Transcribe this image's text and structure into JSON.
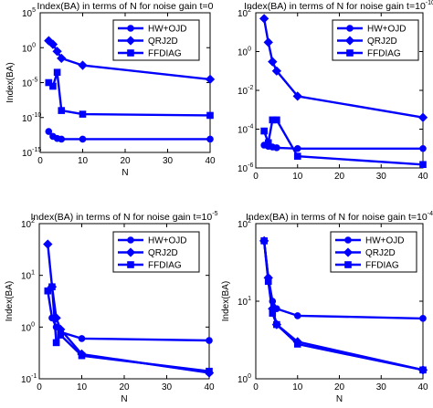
{
  "chart_data": [
    {
      "type": "line",
      "title": "Index(BA) in terms of N for noise gain t=0",
      "title_power": "",
      "xlabel": "N",
      "ylabel": "Index(BA)",
      "xlim": [
        0,
        40
      ],
      "ylim_log10": [
        -15,
        5
      ],
      "xticks": [
        "0",
        "10",
        "20",
        "30",
        "40"
      ],
      "yticks": [
        {
          "base": "10",
          "exp": "5"
        },
        {
          "base": "10",
          "exp": "0"
        },
        {
          "base": "10",
          "exp": "-5"
        },
        {
          "base": "10",
          "exp": "-10"
        },
        {
          "base": "10",
          "exp": "-15"
        }
      ],
      "legend_position": "top-right",
      "series": [
        {
          "name": "HW+OJD",
          "marker": "circle",
          "x": [
            2,
            3,
            4,
            5,
            10,
            40
          ],
          "y": [
            1e-12,
            2e-13,
            1e-13,
            8e-14,
            8e-14,
            8e-14
          ]
        },
        {
          "name": "QRJ2D",
          "marker": "diamond",
          "x": [
            2,
            3,
            4,
            5,
            10,
            40
          ],
          "y": [
            10,
            3,
            0.3,
            0.03,
            0.003,
            3e-05
          ]
        },
        {
          "name": "FFDIAG",
          "marker": "square",
          "x": [
            2,
            3,
            4,
            5,
            10,
            40
          ],
          "y": [
            1e-05,
            3e-06,
            0.0003,
            1e-09,
            3e-10,
            2e-10
          ]
        }
      ]
    },
    {
      "type": "line",
      "title": "Index(BA) in terms of N for noise gain t=10",
      "title_power": "-10",
      "xlabel": "",
      "ylabel": "",
      "xlim": [
        0,
        40
      ],
      "ylim_log10": [
        -6,
        2
      ],
      "xticks": [
        "0",
        "10",
        "20",
        "30",
        "40"
      ],
      "yticks": [
        {
          "base": "10",
          "exp": "2"
        },
        {
          "base": "10",
          "exp": "0"
        },
        {
          "base": "10",
          "exp": "-2"
        },
        {
          "base": "10",
          "exp": "-4"
        },
        {
          "base": "10",
          "exp": "-6"
        }
      ],
      "legend_position": "top-right",
      "series": [
        {
          "name": "HW+OJD",
          "marker": "circle",
          "x": [
            2,
            3,
            4,
            5,
            10,
            40
          ],
          "y": [
            1.5e-05,
            1.3e-05,
            1.2e-05,
            1.1e-05,
            1e-05,
            1e-05
          ]
        },
        {
          "name": "QRJ2D",
          "marker": "diamond",
          "x": [
            2,
            3,
            4,
            5,
            10,
            40
          ],
          "y": [
            50,
            3,
            0.3,
            0.1,
            0.005,
            0.0004
          ]
        },
        {
          "name": "FFDIAG",
          "marker": "square",
          "x": [
            2,
            3,
            4,
            5,
            10,
            40
          ],
          "y": [
            8e-05,
            2e-05,
            0.0003,
            0.0003,
            4e-06,
            1.5e-06
          ]
        }
      ]
    },
    {
      "type": "line",
      "title": "Index(BA) in terms of N for noise gain t=10",
      "title_power": "-5",
      "xlabel": "N",
      "ylabel": "Index(BA)",
      "xlim": [
        0,
        40
      ],
      "ylim_log10": [
        -1,
        2
      ],
      "xticks": [
        "0",
        "10",
        "20",
        "30",
        "40"
      ],
      "yticks": [
        {
          "base": "10",
          "exp": "2"
        },
        {
          "base": "10",
          "exp": "1"
        },
        {
          "base": "10",
          "exp": "0"
        },
        {
          "base": "10",
          "exp": "-1"
        }
      ],
      "legend_position": "top-right",
      "series": [
        {
          "name": "HW+OJD",
          "marker": "circle",
          "x": [
            2,
            3,
            4,
            5,
            10,
            40
          ],
          "y": [
            5,
            1.5,
            1.0,
            0.8,
            0.6,
            0.55
          ]
        },
        {
          "name": "QRJ2D",
          "marker": "diamond",
          "x": [
            2,
            3,
            4,
            5,
            10,
            40
          ],
          "y": [
            40,
            6,
            1.5,
            0.9,
            0.3,
            0.13
          ]
        },
        {
          "name": "FFDIAG",
          "marker": "square",
          "x": [
            2,
            3,
            4,
            5,
            10,
            40
          ],
          "y": [
            5,
            6,
            0.5,
            0.7,
            0.28,
            0.14
          ]
        }
      ]
    },
    {
      "type": "line",
      "title": "Index(BA) in terms of N for noise gain t=10",
      "title_power": "-4",
      "xlabel": "N",
      "ylabel": "Index(BA)",
      "xlim": [
        0,
        40
      ],
      "ylim_log10": [
        0,
        2
      ],
      "xticks": [
        "0",
        "10",
        "20",
        "30",
        "40"
      ],
      "yticks": [
        {
          "base": "10",
          "exp": "2"
        },
        {
          "base": "10",
          "exp": "1"
        },
        {
          "base": "10",
          "exp": "0"
        }
      ],
      "legend_position": "top-right",
      "series": [
        {
          "name": "HW+OJD",
          "marker": "circle",
          "x": [
            2,
            3,
            4,
            5,
            10,
            40
          ],
          "y": [
            60,
            20,
            10,
            8,
            6.5,
            6
          ]
        },
        {
          "name": "QRJ2D",
          "marker": "diamond",
          "x": [
            2,
            3,
            4,
            5,
            10,
            40
          ],
          "y": [
            60,
            20,
            8,
            5,
            3,
            1.3
          ]
        },
        {
          "name": "FFDIAG",
          "marker": "square",
          "x": [
            2,
            3,
            4,
            5,
            10,
            40
          ],
          "y": [
            60,
            18,
            7,
            5,
            2.8,
            1.3
          ]
        }
      ]
    }
  ],
  "colors": {
    "series": "#0000ff",
    "axis": "#000000",
    "background": "#ffffff"
  }
}
